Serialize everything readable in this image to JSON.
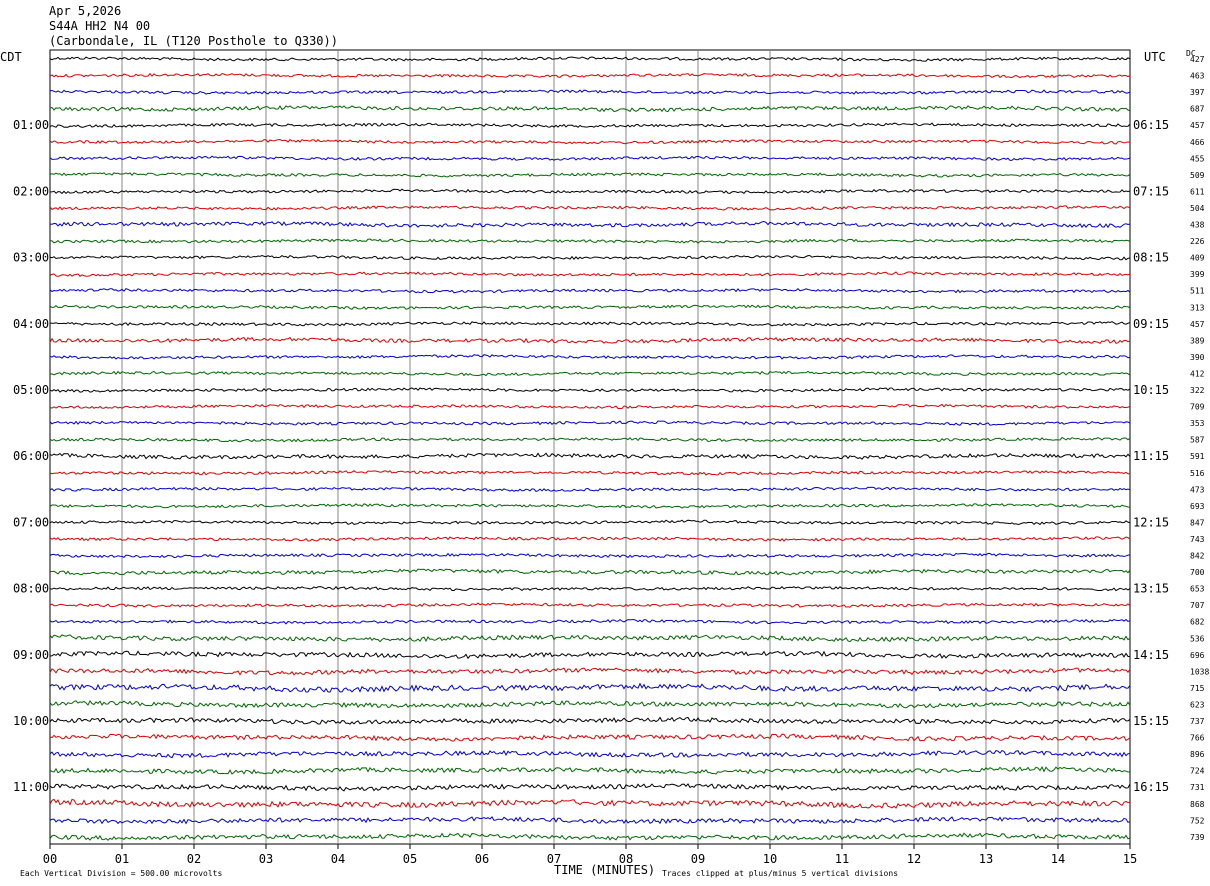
{
  "header": {
    "date": "Apr 5,2026",
    "station": "S44A HH2 N4 00",
    "location": "(Carbondale, IL (T120 Posthole to Q330))"
  },
  "chart_data": {
    "type": "line",
    "title": "",
    "xlabel": "TIME (MINUTES)",
    "ylabel": "",
    "xlim": [
      0,
      15
    ],
    "x_ticks": [
      "00",
      "01",
      "02",
      "03",
      "04",
      "05",
      "06",
      "07",
      "08",
      "09",
      "10",
      "11",
      "12",
      "13",
      "14",
      "15"
    ],
    "left_axis_label": "CDT",
    "right_axis_label": "UTC",
    "right_column_label": "DC",
    "left_time_labels": [
      "01:00",
      "02:00",
      "03:00",
      "04:00",
      "05:00",
      "06:00",
      "07:00",
      "08:00",
      "09:00",
      "10:00",
      "11:00"
    ],
    "right_time_labels": [
      "06:15",
      "07:15",
      "08:15",
      "09:15",
      "10:15",
      "11:15",
      "12:15",
      "13:15",
      "14:15",
      "15:15",
      "16:15"
    ],
    "trace_colors": [
      "#000000",
      "#dd0000",
      "#0000cc",
      "#006600"
    ],
    "trace_dc_offsets": [
      "427",
      "463",
      "397",
      "687",
      "457",
      "466",
      "455",
      "509",
      "611",
      "504",
      "438",
      "226",
      "409",
      "399",
      "511",
      "313",
      "457",
      "389",
      "390",
      "412",
      "322",
      "709",
      "353",
      "587",
      "591",
      "516",
      "473",
      "693",
      "847",
      "743",
      "842",
      "700",
      "653",
      "707",
      "682",
      "536",
      "696",
      "1038",
      "715",
      "623",
      "737",
      "766",
      "896",
      "724",
      "731",
      "868",
      "752",
      "739"
    ],
    "trace_count": 48,
    "scale_note": "Each Vertical Division =  500.00 microvolts",
    "clip_note": "Traces clipped at plus/minus 5 vertical divisions"
  }
}
